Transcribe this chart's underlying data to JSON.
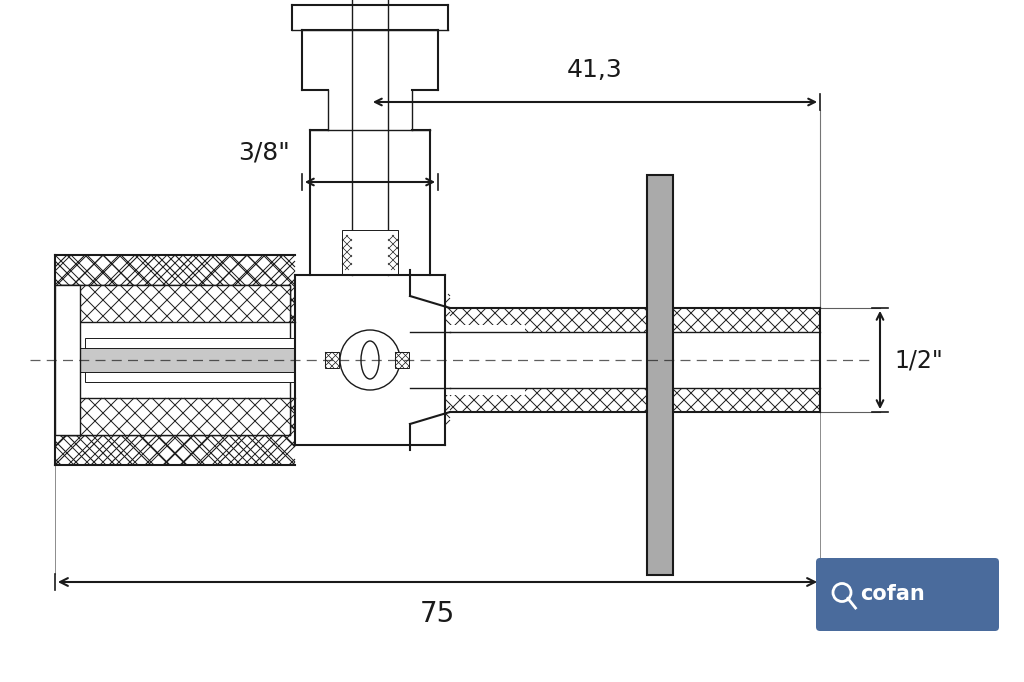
{
  "bg_color": "#ffffff",
  "line_color": "#1a1a1a",
  "handle_color": "#aaaaaa",
  "hatch_color": "#1a1a1a",
  "cofan_bg": "#4a6b9c",
  "cofan_text": "#ffffff",
  "dim_41_3": "41,3",
  "dim_3_8": "3/8\"",
  "dim_1_2": "1/2\"",
  "dim_75": "75",
  "figw": 10.24,
  "figh": 6.82,
  "dpi": 100
}
